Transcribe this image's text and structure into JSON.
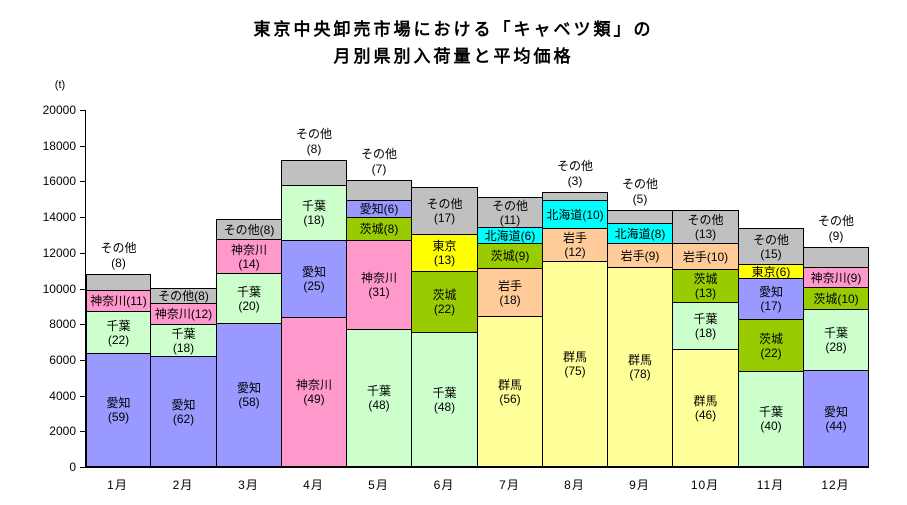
{
  "title": {
    "line1": "東京中央卸売市場における「キャベツ類」の",
    "line2": "月別県別入荷量と平均価格"
  },
  "unit_label": "(t)",
  "chart_data": {
    "type": "bar",
    "subtype": "stacked-percent-labeled",
    "title": "東京中央卸売市場における「キャベツ類」の月別県別入荷量と平均価格",
    "ylabel": "(t)",
    "ylim": [
      0,
      20000
    ],
    "ytick_step": 2000,
    "yticks": [
      0,
      2000,
      4000,
      6000,
      8000,
      10000,
      12000,
      14000,
      16000,
      18000,
      20000
    ],
    "grid": false,
    "legend": "none",
    "categories": [
      "1月",
      "2月",
      "3月",
      "4月",
      "5月",
      "6月",
      "7月",
      "8月",
      "9月",
      "10月",
      "11月",
      "12月"
    ],
    "colors": {
      "愛知": "#9999FF",
      "千葉": "#CCFFCC",
      "神奈川": "#FF99CC",
      "その他": "#C0C0C0",
      "茨城": "#99CC00",
      "東京": "#FFFF00",
      "群馬": "#FFFF99",
      "岩手": "#FFCC99",
      "北海道": "#00FFFF"
    },
    "months": [
      {
        "month": "1月",
        "total_t": 10800,
        "top_label": [
          "その他",
          "(8)"
        ],
        "segments": [
          {
            "name": "愛知",
            "pct": 59,
            "label_lines": [
              "愛知",
              "(59)"
            ]
          },
          {
            "name": "千葉",
            "pct": 22,
            "label_lines": [
              "千葉",
              "(22)"
            ]
          },
          {
            "name": "神奈川",
            "pct": 11,
            "label_lines": [
              "神奈川(11)"
            ]
          },
          {
            "name": "その他",
            "pct": 8,
            "label_lines": []
          }
        ]
      },
      {
        "month": "2月",
        "total_t": 10000,
        "top_label": null,
        "segments": [
          {
            "name": "愛知",
            "pct": 62,
            "label_lines": [
              "愛知",
              "(62)"
            ]
          },
          {
            "name": "千葉",
            "pct": 18,
            "label_lines": [
              "千葉",
              "(18)"
            ]
          },
          {
            "name": "神奈川",
            "pct": 12,
            "label_lines": [
              "神奈川(12)"
            ]
          },
          {
            "name": "その他",
            "pct": 8,
            "label_lines": [
              "その他(8)"
            ]
          }
        ]
      },
      {
        "month": "3月",
        "total_t": 13900,
        "top_label": null,
        "segments": [
          {
            "name": "愛知",
            "pct": 58,
            "label_lines": [
              "愛知",
              "(58)"
            ]
          },
          {
            "name": "千葉",
            "pct": 20,
            "label_lines": [
              "千葉",
              "(20)"
            ]
          },
          {
            "name": "神奈川",
            "pct": 14,
            "label_lines": [
              "神奈川",
              "(14)"
            ]
          },
          {
            "name": "その他",
            "pct": 8,
            "label_lines": [
              "その他(8)"
            ]
          }
        ]
      },
      {
        "month": "4月",
        "total_t": 17200,
        "top_label": [
          "その他",
          "(8)"
        ],
        "segments": [
          {
            "name": "神奈川",
            "pct": 49,
            "label_lines": [
              "神奈川",
              "(49)"
            ]
          },
          {
            "name": "愛知",
            "pct": 25,
            "label_lines": [
              "愛知",
              "(25)"
            ]
          },
          {
            "name": "千葉",
            "pct": 18,
            "label_lines": [
              "千葉",
              "(18)"
            ]
          },
          {
            "name": "その他",
            "pct": 8,
            "label_lines": []
          }
        ]
      },
      {
        "month": "5月",
        "total_t": 16100,
        "top_label": [
          "その他",
          "(7)"
        ],
        "segments": [
          {
            "name": "千葉",
            "pct": 48,
            "label_lines": [
              "千葉",
              "(48)"
            ]
          },
          {
            "name": "神奈川",
            "pct": 31,
            "label_lines": [
              "神奈川",
              "(31)"
            ]
          },
          {
            "name": "茨城",
            "pct": 8,
            "label_lines": [
              "茨城(8)"
            ]
          },
          {
            "name": "愛知",
            "pct": 6,
            "label_lines": [
              "愛知(6)"
            ]
          },
          {
            "name": "その他",
            "pct": 7,
            "label_lines": []
          }
        ]
      },
      {
        "month": "6月",
        "total_t": 15700,
        "top_label": null,
        "segments": [
          {
            "name": "千葉",
            "pct": 48,
            "label_lines": [
              "千葉",
              "(48)"
            ]
          },
          {
            "name": "茨城",
            "pct": 22,
            "label_lines": [
              "茨城",
              "(22)"
            ]
          },
          {
            "name": "東京",
            "pct": 13,
            "label_lines": [
              "東京",
              "(13)"
            ]
          },
          {
            "name": "その他",
            "pct": 17,
            "label_lines": [
              "その他",
              "(17)"
            ]
          }
        ]
      },
      {
        "month": "7月",
        "total_t": 15100,
        "top_label": null,
        "segments": [
          {
            "name": "群馬",
            "pct": 56,
            "label_lines": [
              "群馬",
              "(56)"
            ]
          },
          {
            "name": "岩手",
            "pct": 18,
            "label_lines": [
              "岩手",
              "(18)"
            ]
          },
          {
            "name": "茨城",
            "pct": 9,
            "label_lines": [
              "茨城(9)"
            ]
          },
          {
            "name": "北海道",
            "pct": 6,
            "label_lines": [
              "北海道(6)"
            ]
          },
          {
            "name": "その他",
            "pct": 11,
            "label_lines": [
              "その他",
              "(11)"
            ]
          }
        ]
      },
      {
        "month": "8月",
        "total_t": 15400,
        "top_label": [
          "その他",
          "(3)"
        ],
        "segments": [
          {
            "name": "群馬",
            "pct": 75,
            "label_lines": [
              "群馬",
              "(75)"
            ]
          },
          {
            "name": "岩手",
            "pct": 12,
            "label_lines": [
              "岩手",
              "(12)"
            ]
          },
          {
            "name": "北海道",
            "pct": 10,
            "label_lines": [
              "北海道(10)"
            ]
          },
          {
            "name": "その他",
            "pct": 3,
            "label_lines": []
          }
        ]
      },
      {
        "month": "9月",
        "total_t": 14400,
        "top_label": [
          "その他",
          "(5)"
        ],
        "segments": [
          {
            "name": "群馬",
            "pct": 78,
            "label_lines": [
              "群馬",
              "(78)"
            ]
          },
          {
            "name": "岩手",
            "pct": 9,
            "label_lines": [
              "岩手(9)"
            ]
          },
          {
            "name": "北海道",
            "pct": 8,
            "label_lines": [
              "北海道(8)"
            ]
          },
          {
            "name": "その他",
            "pct": 5,
            "label_lines": []
          }
        ]
      },
      {
        "month": "10月",
        "total_t": 14400,
        "top_label": null,
        "segments": [
          {
            "name": "群馬",
            "pct": 46,
            "label_lines": [
              "群馬",
              "(46)"
            ]
          },
          {
            "name": "千葉",
            "pct": 18,
            "label_lines": [
              "千葉",
              "(18)"
            ]
          },
          {
            "name": "茨城",
            "pct": 13,
            "label_lines": [
              "茨城",
              "(13)"
            ]
          },
          {
            "name": "岩手",
            "pct": 10,
            "label_lines": [
              "岩手(10)"
            ]
          },
          {
            "name": "その他",
            "pct": 13,
            "label_lines": [
              "その他",
              "(13)"
            ]
          }
        ]
      },
      {
        "month": "11月",
        "total_t": 13400,
        "top_label": null,
        "segments": [
          {
            "name": "千葉",
            "pct": 40,
            "label_lines": [
              "千葉",
              "(40)"
            ]
          },
          {
            "name": "茨城",
            "pct": 22,
            "label_lines": [
              "茨城",
              "(22)"
            ]
          },
          {
            "name": "愛知",
            "pct": 17,
            "label_lines": [
              "愛知",
              "(17)"
            ]
          },
          {
            "name": "東京",
            "pct": 6,
            "label_lines": [
              "東京(6)"
            ]
          },
          {
            "name": "その他",
            "pct": 15,
            "label_lines": [
              "その他",
              "(15)"
            ]
          }
        ]
      },
      {
        "month": "12月",
        "total_t": 12300,
        "top_label": [
          "その他",
          "(9)"
        ],
        "segments": [
          {
            "name": "愛知",
            "pct": 44,
            "label_lines": [
              "愛知",
              "(44)"
            ]
          },
          {
            "name": "千葉",
            "pct": 28,
            "label_lines": [
              "千葉",
              "(28)"
            ]
          },
          {
            "name": "茨城",
            "pct": 10,
            "label_lines": [
              "茨城(10)"
            ]
          },
          {
            "name": "神奈川",
            "pct": 9,
            "label_lines": [
              "神奈川(9)"
            ]
          },
          {
            "name": "その他",
            "pct": 9,
            "label_lines": []
          }
        ]
      }
    ]
  }
}
